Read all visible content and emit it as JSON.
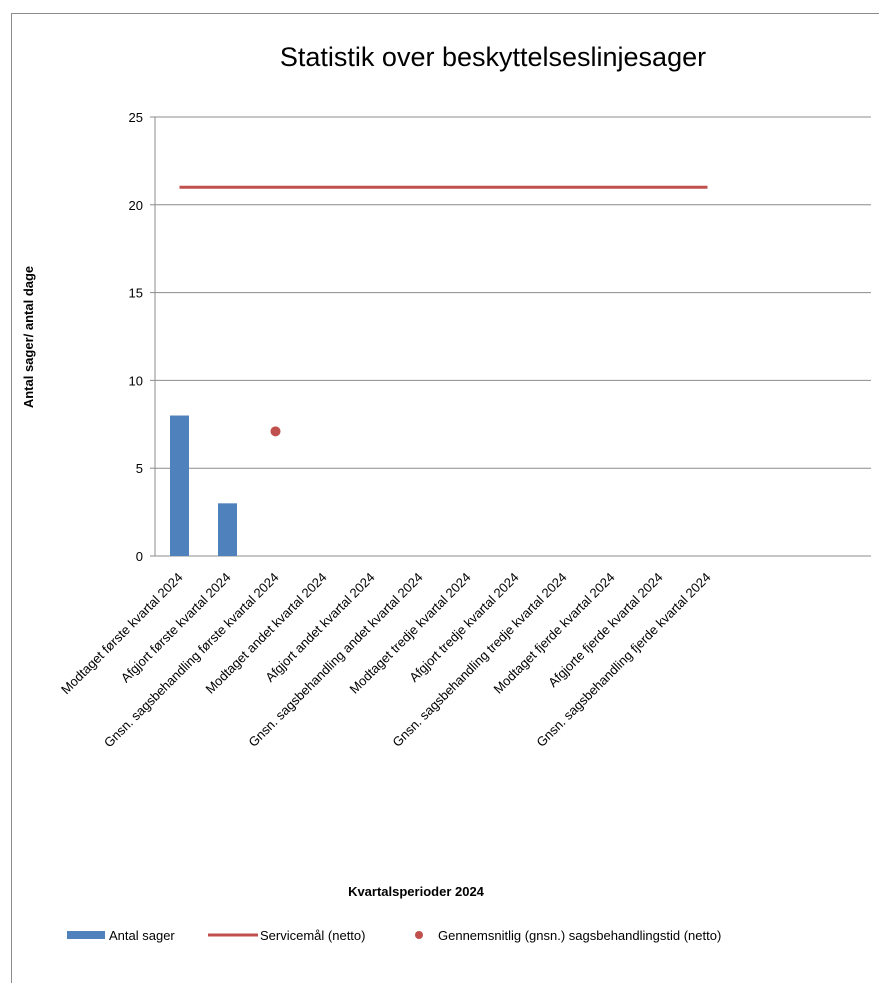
{
  "chart_data": {
    "type": "bar",
    "title": "Statistik over beskyttelseslinjesager",
    "xlabel": "Kvartalsperioder 2024",
    "ylabel": "Antal sager/ antal dage",
    "ylim": [
      0,
      25
    ],
    "yticks": [
      0,
      5,
      10,
      15,
      20,
      25
    ],
    "grid": true,
    "legend_position": "bottom",
    "categories": [
      "Modtaget første kvartal  2024",
      "Afgjort første kvartal 2024",
      "Gnsn. sagsbehandling første kvartal 2024",
      "Modtaget andet kvartal  2024",
      "Afgjort andet kvartal 2024",
      "Gnsn. sagsbehandling andet kvartal 2024",
      "Modtaget tredje kvartal 2024",
      "Afgjort tredje kvartal 2024",
      "Gnsn. sagsbehandling tredje kvartal 2024",
      "Modtaget fjerde kvartal 2024",
      "Afgjorte fjerde kvartal 2024",
      "Gnsn. sagsbehandling fjerde kvartal 2024"
    ],
    "series": [
      {
        "name": "Antal sager",
        "type": "bar",
        "color": "#4f81bd",
        "values": [
          8,
          3,
          null,
          null,
          null,
          null,
          null,
          null,
          null,
          null,
          null,
          null
        ]
      },
      {
        "name": "Servicemål (netto)",
        "type": "line",
        "color": "#c0504d",
        "values": [
          21,
          21,
          21,
          21,
          21,
          21,
          21,
          21,
          21,
          21,
          21,
          21
        ]
      },
      {
        "name": "Gennemsnitlig (gnsn.) sagsbehandlingstid (netto)",
        "type": "scatter",
        "color": "#c0504d",
        "values": [
          null,
          null,
          7.1,
          null,
          null,
          null,
          null,
          null,
          null,
          null,
          null,
          null
        ]
      }
    ]
  }
}
